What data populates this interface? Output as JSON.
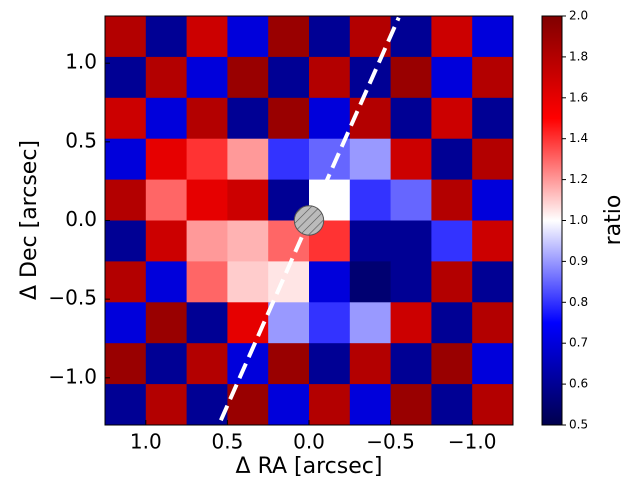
{
  "chart_data": {
    "type": "heatmap",
    "xlabel": "Δ RA [arcsec]",
    "ylabel": "Δ Dec [arcsec]",
    "colorbar_label": "ratio",
    "colormap": "seismic",
    "x": [
      1.125,
      0.875,
      0.625,
      0.375,
      0.125,
      -0.125,
      -0.375,
      -0.625,
      -0.875,
      -1.125
    ],
    "y": [
      1.17,
      0.91,
      0.65,
      0.39,
      0.13,
      -0.13,
      -0.39,
      -0.65,
      -0.91,
      -1.17
    ],
    "values": [
      [
        1.8,
        0.6,
        1.7,
        0.7,
        1.9,
        0.6,
        1.8,
        0.6,
        1.7,
        0.7
      ],
      [
        0.6,
        1.8,
        0.7,
        1.9,
        0.6,
        1.8,
        0.6,
        1.9,
        0.7,
        1.8
      ],
      [
        1.7,
        0.7,
        1.8,
        0.6,
        1.9,
        0.7,
        1.8,
        0.6,
        1.7,
        0.6
      ],
      [
        0.7,
        1.6,
        1.4,
        1.2,
        0.8,
        0.85,
        0.9,
        1.7,
        0.6,
        1.8
      ],
      [
        1.8,
        1.3,
        1.6,
        1.7,
        0.6,
        1.0,
        0.8,
        0.85,
        1.8,
        0.7
      ],
      [
        0.6,
        1.7,
        1.2,
        1.15,
        1.3,
        1.4,
        0.6,
        0.6,
        0.8,
        1.7
      ],
      [
        1.8,
        0.7,
        1.3,
        1.1,
        1.05,
        0.7,
        0.55,
        0.6,
        1.8,
        0.6
      ],
      [
        0.7,
        1.9,
        0.6,
        1.6,
        0.9,
        0.8,
        0.9,
        1.7,
        0.6,
        1.8
      ],
      [
        1.9,
        0.6,
        1.8,
        0.7,
        1.9,
        0.6,
        1.8,
        0.6,
        1.9,
        0.7
      ],
      [
        0.6,
        1.8,
        0.6,
        1.9,
        0.7,
        1.8,
        0.7,
        1.9,
        0.6,
        1.8
      ]
    ],
    "xlim": [
      1.25,
      -1.25
    ],
    "ylim": [
      -1.3,
      1.3
    ],
    "xticks": [
      {
        "value": 1.0,
        "label": "1.0"
      },
      0.5,
      {
        "value": 0.0,
        "label": "0.0"
      },
      {
        "value": -0.5,
        "label": "−0.5"
      },
      {
        "value": -1.0,
        "label": "−1.0"
      }
    ],
    "yticks": [
      {
        "value": -1.0,
        "label": "−1.0"
      },
      {
        "value": -0.5,
        "label": "−0.5"
      },
      {
        "value": 0.0,
        "label": "0.0"
      },
      0.5,
      {
        "value": 1.0,
        "label": "1.0"
      }
    ],
    "clim": [
      0.5,
      2.0
    ],
    "ccenter": 1.0,
    "cticks": [
      0.5,
      0.6,
      0.7,
      0.8,
      0.9,
      {
        "value": 1.0,
        "label": "1.0"
      },
      1.2,
      1.4,
      1.6,
      1.8,
      {
        "value": 2.0,
        "label": "2.0"
      }
    ],
    "line": {
      "x": [
        0.54,
        -0.55
      ],
      "y": [
        -1.27,
        1.29
      ],
      "color": "#ffffff"
    },
    "mask_radius": 0.09
  }
}
